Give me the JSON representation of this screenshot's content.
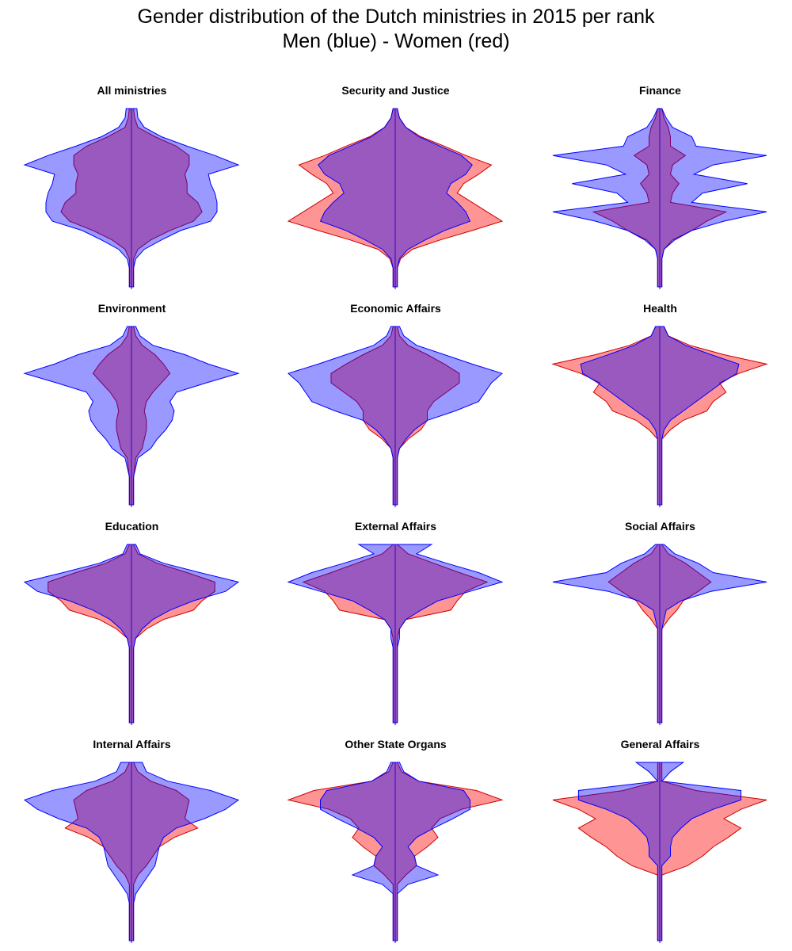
{
  "title_line1": "Gender distribution of the Dutch ministries in 2015 per rank",
  "title_line2": "Men (blue) - Women (red)",
  "colors": {
    "men_fill": "#0000ff",
    "men_fill_opacity": 0.4,
    "men_stroke": "#0000ff",
    "women_fill": "#ff0000",
    "women_fill_opacity": 0.42,
    "women_stroke": "#cc0000",
    "axis_line": "#0000ff"
  },
  "chart_data": {
    "type": "area",
    "description": "Mirrored population-pyramid style violin per ministry. Rows are ranks (top = highest rank). Values are relative half-widths (0 to 1, 1 = widest in panel). ",
    "ranks": [
      "r1",
      "r2",
      "r3",
      "r4",
      "r5",
      "r6",
      "r7",
      "r8",
      "r9",
      "r10",
      "r11",
      "r12",
      "r13",
      "r14",
      "r15",
      "r16",
      "r17",
      "r18",
      "r19",
      "r20"
    ],
    "panels": [
      {
        "name": "All ministries",
        "men": [
          0.05,
          0.06,
          0.12,
          0.28,
          0.52,
          0.78,
          1.0,
          0.72,
          0.74,
          0.78,
          0.8,
          0.8,
          0.74,
          0.46,
          0.28,
          0.12,
          0.04,
          0.02,
          0.02,
          0.02
        ],
        "women": [
          0.02,
          0.03,
          0.06,
          0.22,
          0.42,
          0.54,
          0.54,
          0.5,
          0.52,
          0.52,
          0.62,
          0.66,
          0.58,
          0.36,
          0.18,
          0.06,
          0.02,
          0.02,
          0.02,
          0.02
        ]
      },
      {
        "name": "Security and Justice",
        "men": [
          0.02,
          0.04,
          0.1,
          0.22,
          0.42,
          0.62,
          0.72,
          0.66,
          0.52,
          0.48,
          0.58,
          0.66,
          0.7,
          0.46,
          0.28,
          0.12,
          0.04,
          0.02,
          0.02,
          0.02
        ],
        "women": [
          0.02,
          0.04,
          0.1,
          0.24,
          0.46,
          0.66,
          0.9,
          0.78,
          0.64,
          0.58,
          0.72,
          0.86,
          1.0,
          0.72,
          0.42,
          0.16,
          0.05,
          0.02,
          0.02,
          0.02
        ]
      },
      {
        "name": "Finance",
        "men": [
          0.02,
          0.06,
          0.12,
          0.3,
          0.34,
          1.0,
          0.5,
          0.32,
          0.82,
          0.4,
          0.3,
          1.0,
          0.6,
          0.3,
          0.14,
          0.04,
          0.02,
          0.02,
          0.02,
          0.02
        ],
        "women": [
          0.02,
          0.04,
          0.08,
          0.1,
          0.1,
          0.24,
          0.12,
          0.1,
          0.18,
          0.12,
          0.1,
          0.62,
          0.44,
          0.3,
          0.12,
          0.04,
          0.02,
          0.02,
          0.02,
          0.02
        ]
      },
      {
        "name": "Environment",
        "men": [
          0.04,
          0.08,
          0.2,
          0.5,
          0.72,
          1.0,
          0.7,
          0.42,
          0.36,
          0.4,
          0.38,
          0.32,
          0.24,
          0.18,
          0.06,
          0.04,
          0.02,
          0.02,
          0.02,
          0.02
        ],
        "women": [
          0.02,
          0.04,
          0.1,
          0.22,
          0.3,
          0.36,
          0.28,
          0.2,
          0.14,
          0.12,
          0.14,
          0.14,
          0.12,
          0.1,
          0.04,
          0.03,
          0.02,
          0.02,
          0.02,
          0.02
        ]
      },
      {
        "name": "Economic Affairs",
        "men": [
          0.04,
          0.08,
          0.2,
          0.46,
          0.72,
          1.0,
          0.9,
          0.84,
          0.78,
          0.56,
          0.3,
          0.18,
          0.1,
          0.04,
          0.02,
          0.02,
          0.02,
          0.02,
          0.02,
          0.02
        ],
        "women": [
          0.02,
          0.04,
          0.12,
          0.3,
          0.46,
          0.6,
          0.6,
          0.48,
          0.36,
          0.3,
          0.3,
          0.24,
          0.12,
          0.04,
          0.02,
          0.02,
          0.02,
          0.02,
          0.02,
          0.02
        ]
      },
      {
        "name": "Health",
        "men": [
          0.04,
          0.08,
          0.24,
          0.48,
          0.74,
          0.72,
          0.58,
          0.46,
          0.34,
          0.22,
          0.1,
          0.04,
          0.02,
          0.02,
          0.02,
          0.02,
          0.02,
          0.02,
          0.02,
          0.02
        ],
        "women": [
          0.04,
          0.08,
          0.28,
          0.6,
          1.0,
          0.74,
          0.56,
          0.62,
          0.5,
          0.44,
          0.22,
          0.1,
          0.02,
          0.02,
          0.02,
          0.02,
          0.02,
          0.02,
          0.02,
          0.02
        ]
      },
      {
        "name": "Education",
        "men": [
          0.04,
          0.08,
          0.3,
          0.64,
          1.0,
          0.88,
          0.58,
          0.36,
          0.2,
          0.1,
          0.04,
          0.02,
          0.02,
          0.02,
          0.02,
          0.02,
          0.02,
          0.02,
          0.02,
          0.02
        ],
        "women": [
          0.02,
          0.06,
          0.24,
          0.52,
          0.78,
          0.78,
          0.66,
          0.58,
          0.3,
          0.14,
          0.04,
          0.02,
          0.02,
          0.02,
          0.02,
          0.02,
          0.02,
          0.02,
          0.02,
          0.02
        ]
      },
      {
        "name": "External Affairs",
        "men": [
          0.34,
          0.2,
          0.48,
          0.78,
          1.0,
          0.7,
          0.4,
          0.24,
          0.1,
          0.04,
          0.04,
          0.02,
          0.02,
          0.02,
          0.02,
          0.02,
          0.02,
          0.02,
          0.02,
          0.02
        ],
        "women": [
          0.02,
          0.12,
          0.36,
          0.6,
          0.86,
          0.66,
          0.58,
          0.52,
          0.1,
          0.04,
          0.02,
          0.02,
          0.02,
          0.02,
          0.02,
          0.02,
          0.02,
          0.02,
          0.02,
          0.02
        ]
      },
      {
        "name": "Social Affairs",
        "men": [
          0.04,
          0.14,
          0.36,
          0.5,
          1.0,
          0.48,
          0.2,
          0.06,
          0.04,
          0.02,
          0.02,
          0.02,
          0.02,
          0.02,
          0.02,
          0.02,
          0.02,
          0.02,
          0.02,
          0.02
        ],
        "women": [
          0.02,
          0.08,
          0.24,
          0.36,
          0.48,
          0.36,
          0.22,
          0.16,
          0.08,
          0.02,
          0.02,
          0.02,
          0.02,
          0.02,
          0.02,
          0.02,
          0.02,
          0.02,
          0.02,
          0.02
        ]
      },
      {
        "name": "Internal Affairs",
        "men": [
          0.1,
          0.14,
          0.34,
          0.74,
          1.0,
          0.88,
          0.68,
          0.42,
          0.3,
          0.26,
          0.24,
          0.22,
          0.16,
          0.1,
          0.04,
          0.02,
          0.02,
          0.02,
          0.02,
          0.02
        ],
        "women": [
          0.02,
          0.06,
          0.18,
          0.42,
          0.54,
          0.52,
          0.5,
          0.62,
          0.4,
          0.26,
          0.2,
          0.14,
          0.06,
          0.02,
          0.02,
          0.02,
          0.02,
          0.02,
          0.02,
          0.02
        ]
      },
      {
        "name": "Other State Organs",
        "men": [
          0.04,
          0.08,
          0.22,
          0.64,
          0.7,
          0.7,
          0.54,
          0.36,
          0.2,
          0.12,
          0.18,
          0.2,
          0.4,
          0.12,
          0.02,
          0.02,
          0.02,
          0.02,
          0.02,
          0.02
        ],
        "women": [
          0.02,
          0.06,
          0.22,
          0.76,
          1.0,
          0.62,
          0.42,
          0.34,
          0.4,
          0.3,
          0.18,
          0.2,
          0.1,
          0.02,
          0.02,
          0.02,
          0.02,
          0.02,
          0.02,
          0.02
        ]
      },
      {
        "name": "General Affairs",
        "men": [
          0.22,
          0.1,
          0.02,
          0.76,
          0.76,
          0.5,
          0.3,
          0.2,
          0.12,
          0.1,
          0.1,
          0.02,
          0.02,
          0.02,
          0.02,
          0.02,
          0.02,
          0.02,
          0.02,
          0.02
        ],
        "women": [
          0.02,
          0.02,
          0.02,
          0.34,
          1.0,
          0.76,
          0.6,
          0.76,
          0.64,
          0.5,
          0.4,
          0.26,
          0.02,
          0.02,
          0.02,
          0.02,
          0.02,
          0.02,
          0.02,
          0.02
        ]
      }
    ]
  }
}
